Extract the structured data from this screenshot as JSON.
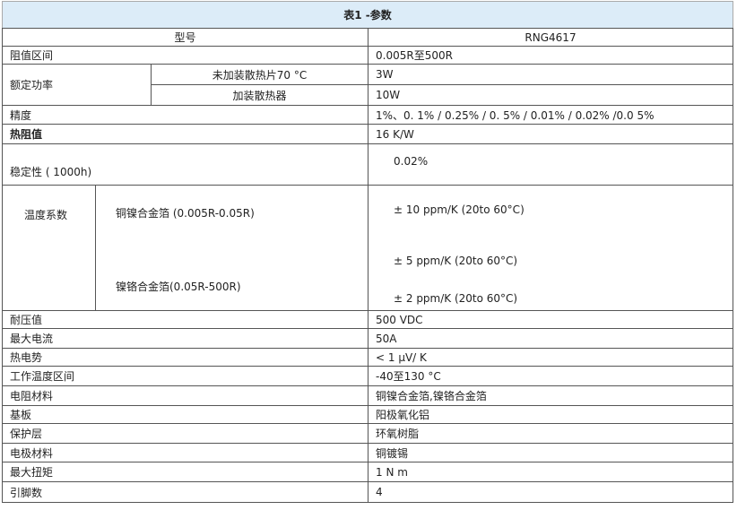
{
  "title": "表1 -参数",
  "model_label": "型号",
  "model_value": "RNG4617",
  "rows": {
    "resistance_range": {
      "label": "阻值区间",
      "value": "0.005R至500R"
    },
    "rated_power": {
      "label": "额定功率",
      "sub1": "未加装散热片70 °C",
      "val1": "3W",
      "sub2": "加装散热器",
      "val2": "10W"
    },
    "accuracy": {
      "label": "精度",
      "value": "1%、0. 1% / 0.25% / 0. 5% / 0.01% / 0.02% /0.0 5%"
    },
    "thermal_resistance": {
      "label": "热阻值",
      "value": "16 K/W"
    },
    "stability": {
      "label": "稳定性 ( 1000h)",
      "value": "0.02%"
    },
    "tcr": {
      "label": "温度系数",
      "sub1": "铜镍合金箔 (0.005R-0.05R)",
      "sub2": "镍铬合金箔(0.05R-500R)",
      "val1": "± 10 ppm/K (20to 60°C)",
      "val2": "± 5 ppm/K (20to 60°C)",
      "val3": "± 2 ppm/K (20to 60°C)"
    },
    "simple": [
      {
        "label": "耐压值",
        "value": "500 VDC"
      },
      {
        "label": "最大电流",
        "value": "50A"
      },
      {
        "label": "热电势",
        "value": "< 1 μV/ K"
      },
      {
        "label": "工作温度区间",
        "value": "-40至130 °C"
      },
      {
        "label": "电阻材料",
        "value": "铜镍合金箔,镍铬合金箔"
      },
      {
        "label": "基板",
        "value": "阳极氧化铝"
      },
      {
        "label": "保护层",
        "value": "环氧树脂"
      },
      {
        "label": "电极材料",
        "value": "铜镀锡"
      },
      {
        "label": "最大扭矩",
        "value": "1 N m"
      },
      {
        "label": "引脚数",
        "value": "4"
      }
    ]
  }
}
